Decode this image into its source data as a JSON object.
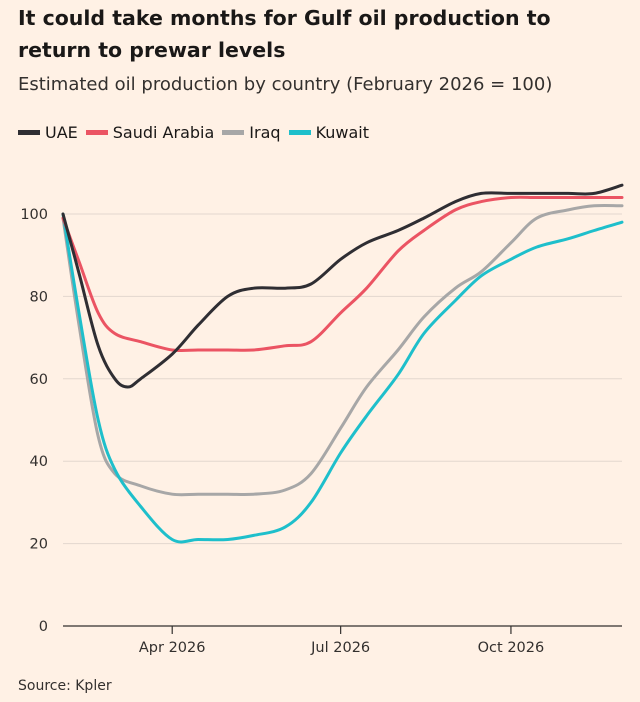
{
  "title": "It could take months for Gulf oil production to return to prewar levels",
  "subtitle": "Estimated oil production by country (February 2026 = 100)",
  "source": "Source: Kpler",
  "colors": {
    "background": "#fff1e5",
    "UAE": "#2f2e33",
    "Saudi Arabia": "#eb5463",
    "Iraq": "#a7a7a7",
    "Kuwait": "#1ebfcb",
    "grid": "#e3d7ce",
    "axis": "#33302e"
  },
  "chart_data": {
    "type": "line",
    "title": "It could take months for Gulf oil production to return to prewar levels",
    "subtitle": "Estimated oil production by country (February 2026 = 100)",
    "xlabel": "",
    "ylabel": "",
    "x_tick_labels": [
      "Apr 2026",
      "Jul 2026",
      "Oct 2026"
    ],
    "y_ticks": [
      0,
      20,
      40,
      60,
      80,
      100
    ],
    "ylim": [
      0,
      110
    ],
    "xlim": [
      "2026-02-01",
      "2026-11-30"
    ],
    "grid": true,
    "legend_position": "top-left",
    "series": [
      {
        "name": "UAE",
        "points": [
          [
            "2026-02-01",
            100
          ],
          [
            "2026-02-10",
            85
          ],
          [
            "2026-02-20",
            68
          ],
          [
            "2026-03-01",
            60
          ],
          [
            "2026-03-08",
            58
          ],
          [
            "2026-03-15",
            60
          ],
          [
            "2026-04-01",
            66
          ],
          [
            "2026-04-15",
            73
          ],
          [
            "2026-05-01",
            80
          ],
          [
            "2026-05-15",
            82
          ],
          [
            "2026-06-01",
            82
          ],
          [
            "2026-06-15",
            83
          ],
          [
            "2026-07-01",
            89
          ],
          [
            "2026-07-15",
            93
          ],
          [
            "2026-08-01",
            96
          ],
          [
            "2026-08-15",
            99
          ],
          [
            "2026-09-01",
            103
          ],
          [
            "2026-09-15",
            105
          ],
          [
            "2026-10-01",
            105
          ],
          [
            "2026-10-15",
            105
          ],
          [
            "2026-11-01",
            105
          ],
          [
            "2026-11-15",
            105
          ],
          [
            "2026-11-30",
            107
          ]
        ]
      },
      {
        "name": "Saudi Arabia",
        "points": [
          [
            "2026-02-01",
            99
          ],
          [
            "2026-02-10",
            88
          ],
          [
            "2026-02-20",
            76
          ],
          [
            "2026-03-01",
            71
          ],
          [
            "2026-03-15",
            69
          ],
          [
            "2026-04-01",
            67
          ],
          [
            "2026-04-15",
            67
          ],
          [
            "2026-05-01",
            67
          ],
          [
            "2026-05-15",
            67
          ],
          [
            "2026-06-01",
            68
          ],
          [
            "2026-06-15",
            69
          ],
          [
            "2026-07-01",
            76
          ],
          [
            "2026-07-15",
            82
          ],
          [
            "2026-08-01",
            91
          ],
          [
            "2026-08-15",
            96
          ],
          [
            "2026-09-01",
            101
          ],
          [
            "2026-09-15",
            103
          ],
          [
            "2026-10-01",
            104
          ],
          [
            "2026-10-15",
            104
          ],
          [
            "2026-11-01",
            104
          ],
          [
            "2026-11-15",
            104
          ],
          [
            "2026-11-30",
            104
          ]
        ]
      },
      {
        "name": "Iraq",
        "points": [
          [
            "2026-02-01",
            99
          ],
          [
            "2026-02-10",
            72
          ],
          [
            "2026-02-20",
            46
          ],
          [
            "2026-03-01",
            37
          ],
          [
            "2026-03-15",
            34
          ],
          [
            "2026-04-01",
            32
          ],
          [
            "2026-04-15",
            32
          ],
          [
            "2026-05-01",
            32
          ],
          [
            "2026-05-15",
            32
          ],
          [
            "2026-06-01",
            33
          ],
          [
            "2026-06-15",
            37
          ],
          [
            "2026-07-01",
            48
          ],
          [
            "2026-07-15",
            58
          ],
          [
            "2026-08-01",
            67
          ],
          [
            "2026-08-15",
            75
          ],
          [
            "2026-09-01",
            82
          ],
          [
            "2026-09-15",
            86
          ],
          [
            "2026-10-01",
            93
          ],
          [
            "2026-10-15",
            99
          ],
          [
            "2026-11-01",
            101
          ],
          [
            "2026-11-15",
            102
          ],
          [
            "2026-11-30",
            102
          ]
        ]
      },
      {
        "name": "Kuwait",
        "points": [
          [
            "2026-02-01",
            100
          ],
          [
            "2026-02-10",
            75
          ],
          [
            "2026-02-20",
            50
          ],
          [
            "2026-03-01",
            38
          ],
          [
            "2026-03-15",
            29
          ],
          [
            "2026-04-01",
            21
          ],
          [
            "2026-04-15",
            21
          ],
          [
            "2026-05-01",
            21
          ],
          [
            "2026-05-15",
            22
          ],
          [
            "2026-06-01",
            24
          ],
          [
            "2026-06-15",
            30
          ],
          [
            "2026-07-01",
            42
          ],
          [
            "2026-07-15",
            51
          ],
          [
            "2026-08-01",
            61
          ],
          [
            "2026-08-15",
            71
          ],
          [
            "2026-09-01",
            79
          ],
          [
            "2026-09-15",
            85
          ],
          [
            "2026-10-01",
            89
          ],
          [
            "2026-10-15",
            92
          ],
          [
            "2026-11-01",
            94
          ],
          [
            "2026-11-15",
            96
          ],
          [
            "2026-11-30",
            98
          ]
        ]
      }
    ]
  }
}
